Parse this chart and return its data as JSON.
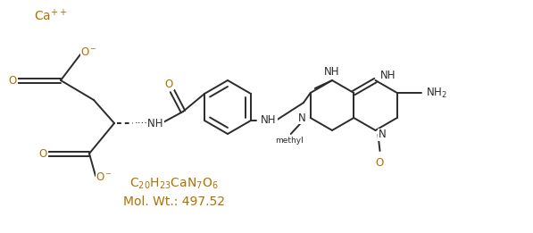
{
  "bg": "#ffffff",
  "lc": "#2b2b2b",
  "ac": "#b07000",
  "lw": 1.4,
  "fs": 8.5,
  "figsize": [
    5.97,
    2.61
  ],
  "dpi": 100,
  "formula": "C$_{20}$H$_{23}$CaN$_{7}$O$_{6}$",
  "mw": "Mol. Wt.: 497.52",
  "ca_label": "Ca$^{++}$"
}
